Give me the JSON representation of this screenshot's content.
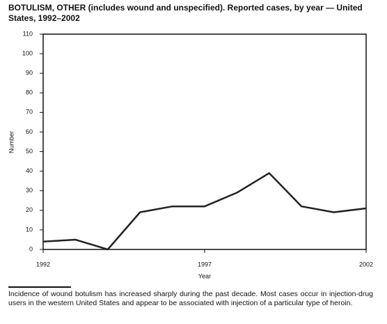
{
  "chart_data": {
    "type": "line",
    "title": "BOTULISM, OTHER (includes wound and unspecified). Reported cases, by year — United States, 1992–2002",
    "x": [
      1992,
      1993,
      1994,
      1995,
      1996,
      1997,
      1998,
      1999,
      2000,
      2001,
      2002
    ],
    "series": [
      {
        "name": "Reported cases",
        "color": "#222222",
        "values": [
          4,
          5,
          0,
          19,
          22,
          22,
          29,
          39,
          22,
          19,
          21
        ]
      }
    ],
    "xlim": [
      1992,
      2002
    ],
    "xticks": [
      1992,
      1997,
      2002
    ],
    "ylim": [
      0,
      110
    ],
    "yticks": [
      0,
      10,
      20,
      30,
      40,
      50,
      60,
      70,
      80,
      90,
      100,
      110
    ],
    "x_label": "Year",
    "y_label": "Number",
    "footnote": "Incidence of wound botulism has increased sharply during the past decade. Most cases occur in injection-drug users in the western United States and appear to be associated with injection of a particular type of heroin."
  }
}
